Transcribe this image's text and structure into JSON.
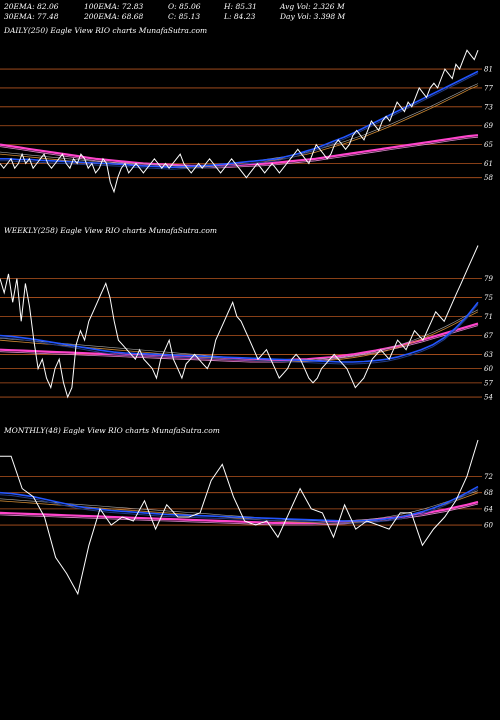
{
  "stats": {
    "row1": [
      "20EMA: 82.06",
      "100EMA: 72.83",
      "O: 85.06",
      "H: 85.31",
      "Avg Vol: 2.326  M"
    ],
    "row2": [
      "30EMA: 77.48",
      "200EMA: 68.68",
      "C: 85.13",
      "L: 84.23",
      "Day Vol: 3.398 M"
    ]
  },
  "colors": {
    "price": "#ffffff",
    "level": "#b5551f",
    "ema_blue": "#2255ff",
    "ema_navy": "#223a80",
    "ema_orange": "#cc8833",
    "ema_gray": "#aaaaaa",
    "ema_magenta": "#ff44cc",
    "ema_pink": "#dd88cc"
  },
  "chart_data": [
    {
      "type": "line",
      "title": "DAILY(250) Eagle  View  RIO charts MunafaSutra.com",
      "ylim": [
        52,
        88
      ],
      "levels": [
        81,
        77,
        73,
        69,
        65,
        61,
        58
      ],
      "price": [
        61,
        60,
        61,
        62,
        60,
        61,
        63,
        61,
        62,
        60,
        61,
        62,
        63,
        61,
        60,
        61,
        62,
        63,
        61,
        60,
        62,
        61,
        63,
        62,
        60,
        61,
        59,
        60,
        62,
        61,
        57,
        55,
        58,
        60,
        61,
        59,
        60,
        61,
        60,
        59,
        60,
        61,
        62,
        61,
        60,
        61,
        60,
        61,
        62,
        63,
        61,
        60,
        59,
        60,
        61,
        60,
        61,
        62,
        61,
        60,
        59,
        60,
        61,
        62,
        61,
        60,
        59,
        58,
        59,
        60,
        61,
        60,
        59,
        60,
        61,
        60,
        59,
        60,
        61,
        62,
        63,
        64,
        63,
        62,
        61,
        63,
        65,
        64,
        63,
        62,
        63,
        65,
        66,
        65,
        64,
        65,
        67,
        68,
        67,
        66,
        68,
        70,
        69,
        68,
        70,
        71,
        70,
        72,
        74,
        73,
        72,
        74,
        73,
        75,
        77,
        76,
        75,
        77,
        78,
        77,
        79,
        81,
        80,
        79,
        82,
        81,
        83,
        85,
        84,
        83,
        85
      ],
      "ema_short": [
        62,
        62,
        61.8,
        61.9,
        61.7,
        61.6,
        61.5,
        61.4,
        61.3,
        61.2,
        61.1,
        61,
        60.9,
        60.8,
        60.6,
        60.5,
        60.4,
        60.3,
        60.2,
        60.3,
        60.4,
        60.5,
        60.6,
        60.8,
        61,
        61.2,
        61.4,
        61.6,
        61.8,
        62,
        62.5,
        63,
        63.6,
        64.2,
        65,
        65.8,
        66.6,
        67.5,
        68.5,
        69.5,
        70.5,
        71.5,
        72.5,
        73.5,
        74.5,
        75.5,
        76.5,
        77.5,
        78.5,
        79.5,
        80.5
      ],
      "ema_mid": [
        63,
        62.8,
        62.6,
        62.4,
        62.2,
        62,
        61.8,
        61.6,
        61.4,
        61.2,
        61,
        60.9,
        60.8,
        60.7,
        60.6,
        60.5,
        60.4,
        60.3,
        60.2,
        60.1,
        60.1,
        60.2,
        60.3,
        60.4,
        60.6,
        60.8,
        61,
        61.2,
        61.5,
        61.8,
        62.1,
        62.5,
        62.9,
        63.4,
        64,
        64.6,
        65.2,
        65.9,
        66.6,
        67.4,
        68.2,
        69,
        69.9,
        70.8,
        71.7,
        72.6,
        73.6,
        74.6,
        75.6,
        76.6,
        77.5
      ],
      "ema_long": [
        65,
        64.7,
        64.4,
        64.1,
        63.8,
        63.5,
        63.2,
        62.9,
        62.6,
        62.3,
        62,
        61.8,
        61.6,
        61.4,
        61.2,
        61,
        60.9,
        60.8,
        60.7,
        60.6,
        60.5,
        60.5,
        60.5,
        60.5,
        60.6,
        60.7,
        60.8,
        60.9,
        61,
        61.2,
        61.4,
        61.6,
        61.8,
        62,
        62.3,
        62.6,
        62.9,
        63.2,
        63.5,
        63.8,
        64.1,
        64.4,
        64.7,
        65,
        65.3,
        65.6,
        65.9,
        66.2,
        66.5,
        66.8,
        67
      ]
    },
    {
      "type": "line",
      "title": "WEEKLY(258) Eagle  View  RIO charts MunafaSutra.com",
      "ylim": [
        50,
        88
      ],
      "levels": [
        79,
        75,
        71,
        67,
        63,
        60,
        57,
        54
      ],
      "price": [
        79,
        76,
        80,
        74,
        79,
        70,
        78,
        73,
        66,
        60,
        62,
        58,
        56,
        60,
        62,
        57,
        54,
        56,
        65,
        68,
        66,
        70,
        72,
        74,
        76,
        78,
        75,
        70,
        66,
        65,
        64,
        63,
        62,
        64,
        62,
        61,
        60,
        58,
        62,
        64,
        66,
        62,
        60,
        58,
        61,
        62,
        63,
        62,
        61,
        60,
        62,
        66,
        68,
        70,
        72,
        74,
        71,
        70,
        68,
        66,
        64,
        62,
        63,
        64,
        62,
        60,
        58,
        59,
        60,
        62,
        63,
        62,
        60,
        58,
        57,
        58,
        60,
        61,
        62,
        63,
        62,
        61,
        60,
        58,
        56,
        57,
        58,
        60,
        62,
        63,
        64,
        63,
        62,
        64,
        66,
        65,
        64,
        66,
        68,
        67,
        66,
        68,
        70,
        72,
        71,
        70,
        72,
        74,
        76,
        78,
        80,
        82,
        84,
        86
      ],
      "ema_short": [
        67,
        66.8,
        66.5,
        66.2,
        65.8,
        65.4,
        65,
        64.6,
        64.2,
        63.8,
        63.5,
        63.3,
        63.2,
        63.1,
        63,
        62.9,
        62.8,
        62.7,
        62.6,
        62.5,
        62.4,
        62.3,
        62.2,
        62.1,
        62,
        61.9,
        61.8,
        61.7,
        61.6,
        61.5,
        61.4,
        61.4,
        61.5,
        61.7,
        62,
        62.5,
        63.2,
        64,
        65,
        66.5,
        68.5,
        71,
        74
      ],
      "ema_mid": [
        66,
        65.8,
        65.6,
        65.4,
        65.2,
        65,
        64.8,
        64.6,
        64.4,
        64.2,
        64,
        63.8,
        63.6,
        63.4,
        63.2,
        63,
        62.8,
        62.6,
        62.4,
        62.2,
        62,
        61.9,
        61.8,
        61.7,
        61.6,
        61.5,
        61.5,
        61.5,
        61.6,
        61.8,
        62,
        62.3,
        62.7,
        63.2,
        63.8,
        64.5,
        65.3,
        66.2,
        67.2,
        68.3,
        69.5,
        70.8,
        72
      ],
      "ema_long": [
        64,
        63.9,
        63.8,
        63.7,
        63.6,
        63.5,
        63.4,
        63.3,
        63.2,
        63.1,
        63,
        62.9,
        62.8,
        62.7,
        62.6,
        62.5,
        62.4,
        62.3,
        62.2,
        62.1,
        62,
        61.9,
        61.8,
        61.8,
        61.8,
        61.8,
        61.9,
        62,
        62.2,
        62.4,
        62.7,
        63,
        63.4,
        63.8,
        64.3,
        64.8,
        65.4,
        66,
        66.7,
        67.4,
        68.1,
        68.8,
        69.5
      ]
    },
    {
      "type": "line",
      "title": "MONTHLY(48) Eagle  View  RIO charts MunafaSutra.com",
      "ylim": [
        40,
        82
      ],
      "levels": [
        72,
        68,
        64,
        60
      ],
      "price": [
        77,
        77,
        69,
        67,
        62,
        52,
        48,
        43,
        55,
        64,
        60,
        62,
        61,
        66,
        59,
        65,
        62,
        62,
        63,
        71,
        75,
        67,
        61,
        60,
        61,
        57,
        63,
        69,
        64,
        63,
        57,
        65,
        59,
        61,
        60,
        59,
        63,
        63,
        55,
        59,
        62,
        66,
        72,
        81
      ],
      "ema_short": [
        68,
        67.8,
        67.4,
        67,
        66.4,
        65.8,
        65.2,
        64.6,
        64.2,
        63.9,
        63.6,
        63.4,
        63.2,
        63,
        62.8,
        62.6,
        62.5,
        62.4,
        62.3,
        62.2,
        62.1,
        62,
        61.9,
        61.8,
        61.7,
        61.6,
        61.5,
        61.4,
        61.3,
        61.2,
        61.1,
        61,
        61,
        61.1,
        61.3,
        61.6,
        62,
        62.6,
        63.3,
        64.2,
        65.3,
        66.6,
        68,
        69.5
      ],
      "ema_mid": [
        66,
        65.8,
        65.6,
        65.4,
        65.2,
        65,
        64.8,
        64.6,
        64.4,
        64.2,
        64,
        63.8,
        63.6,
        63.4,
        63.2,
        63,
        62.8,
        62.6,
        62.4,
        62.2,
        62,
        61.8,
        61.6,
        61.4,
        61.2,
        61,
        60.8,
        60.7,
        60.6,
        60.5,
        60.5,
        60.6,
        60.7,
        60.9,
        61.2,
        61.6,
        62.1,
        62.7,
        63.4,
        64.2,
        65.1,
        66,
        67,
        68
      ],
      "ema_long": [
        63,
        62.9,
        62.8,
        62.7,
        62.6,
        62.5,
        62.4,
        62.3,
        62.2,
        62.1,
        62,
        61.9,
        61.8,
        61.7,
        61.6,
        61.5,
        61.4,
        61.3,
        61.2,
        61.1,
        61,
        60.9,
        60.8,
        60.7,
        60.6,
        60.5,
        60.5,
        60.5,
        60.5,
        60.6,
        60.7,
        60.8,
        61,
        61.2,
        61.4,
        61.7,
        62,
        62.4,
        62.8,
        63.3,
        63.8,
        64.4,
        65,
        65.7
      ]
    }
  ]
}
